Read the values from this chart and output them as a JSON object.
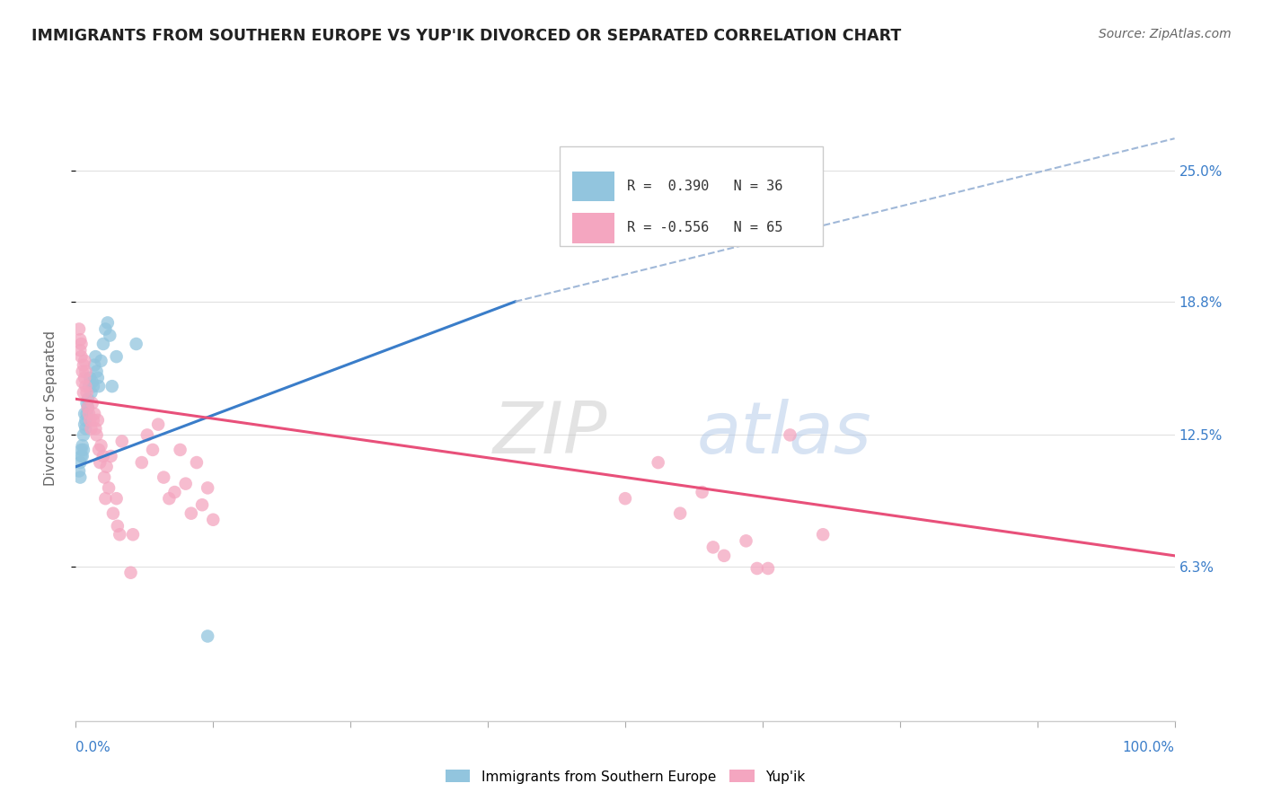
{
  "title": "IMMIGRANTS FROM SOUTHERN EUROPE VS YUP'IK DIVORCED OR SEPARATED CORRELATION CHART",
  "source": "Source: ZipAtlas.com",
  "ylabel": "Divorced or Separated",
  "ytick_labels": [
    "6.3%",
    "12.5%",
    "18.8%",
    "25.0%"
  ],
  "ytick_values": [
    0.063,
    0.125,
    0.188,
    0.25
  ],
  "xlim": [
    0.0,
    1.0
  ],
  "ylim": [
    -0.01,
    0.285
  ],
  "watermark_zip": "ZIP",
  "watermark_atlas": "atlas",
  "legend_blue_r": "R =  0.390",
  "legend_blue_n": "N = 36",
  "legend_pink_r": "R = -0.556",
  "legend_pink_n": "N = 65",
  "legend_label_blue": "Immigrants from Southern Europe",
  "legend_label_pink": "Yup'ik",
  "blue_color": "#92c5de",
  "pink_color": "#f4a6c0",
  "blue_line_color": "#3a7dc9",
  "pink_line_color": "#e8507a",
  "dashed_line_color": "#a0b8d8",
  "blue_scatter": [
    [
      0.003,
      0.108
    ],
    [
      0.004,
      0.112
    ],
    [
      0.004,
      0.105
    ],
    [
      0.005,
      0.118
    ],
    [
      0.005,
      0.115
    ],
    [
      0.006,
      0.12
    ],
    [
      0.006,
      0.115
    ],
    [
      0.007,
      0.125
    ],
    [
      0.007,
      0.118
    ],
    [
      0.008,
      0.13
    ],
    [
      0.008,
      0.135
    ],
    [
      0.009,
      0.128
    ],
    [
      0.009,
      0.132
    ],
    [
      0.01,
      0.14
    ],
    [
      0.01,
      0.135
    ],
    [
      0.011,
      0.142
    ],
    [
      0.011,
      0.138
    ],
    [
      0.012,
      0.148
    ],
    [
      0.013,
      0.152
    ],
    [
      0.014,
      0.145
    ],
    [
      0.015,
      0.15
    ],
    [
      0.016,
      0.148
    ],
    [
      0.017,
      0.158
    ],
    [
      0.018,
      0.162
    ],
    [
      0.019,
      0.155
    ],
    [
      0.02,
      0.152
    ],
    [
      0.021,
      0.148
    ],
    [
      0.023,
      0.16
    ],
    [
      0.025,
      0.168
    ],
    [
      0.027,
      0.175
    ],
    [
      0.029,
      0.178
    ],
    [
      0.031,
      0.172
    ],
    [
      0.033,
      0.148
    ],
    [
      0.037,
      0.162
    ],
    [
      0.055,
      0.168
    ],
    [
      0.12,
      0.03
    ]
  ],
  "pink_scatter": [
    [
      0.003,
      0.175
    ],
    [
      0.004,
      0.17
    ],
    [
      0.004,
      0.165
    ],
    [
      0.005,
      0.162
    ],
    [
      0.005,
      0.168
    ],
    [
      0.006,
      0.155
    ],
    [
      0.006,
      0.15
    ],
    [
      0.007,
      0.158
    ],
    [
      0.007,
      0.145
    ],
    [
      0.008,
      0.152
    ],
    [
      0.008,
      0.16
    ],
    [
      0.009,
      0.155
    ],
    [
      0.009,
      0.148
    ],
    [
      0.01,
      0.145
    ],
    [
      0.011,
      0.138
    ],
    [
      0.012,
      0.135
    ],
    [
      0.013,
      0.132
    ],
    [
      0.014,
      0.128
    ],
    [
      0.015,
      0.14
    ],
    [
      0.016,
      0.132
    ],
    [
      0.017,
      0.135
    ],
    [
      0.018,
      0.128
    ],
    [
      0.019,
      0.125
    ],
    [
      0.02,
      0.132
    ],
    [
      0.021,
      0.118
    ],
    [
      0.022,
      0.112
    ],
    [
      0.023,
      0.12
    ],
    [
      0.025,
      0.115
    ],
    [
      0.026,
      0.105
    ],
    [
      0.027,
      0.095
    ],
    [
      0.028,
      0.11
    ],
    [
      0.03,
      0.1
    ],
    [
      0.032,
      0.115
    ],
    [
      0.034,
      0.088
    ],
    [
      0.037,
      0.095
    ],
    [
      0.038,
      0.082
    ],
    [
      0.04,
      0.078
    ],
    [
      0.042,
      0.122
    ],
    [
      0.05,
      0.06
    ],
    [
      0.052,
      0.078
    ],
    [
      0.06,
      0.112
    ],
    [
      0.065,
      0.125
    ],
    [
      0.07,
      0.118
    ],
    [
      0.075,
      0.13
    ],
    [
      0.08,
      0.105
    ],
    [
      0.085,
      0.095
    ],
    [
      0.09,
      0.098
    ],
    [
      0.095,
      0.118
    ],
    [
      0.1,
      0.102
    ],
    [
      0.105,
      0.088
    ],
    [
      0.11,
      0.112
    ],
    [
      0.115,
      0.092
    ],
    [
      0.12,
      0.1
    ],
    [
      0.125,
      0.085
    ],
    [
      0.5,
      0.095
    ],
    [
      0.53,
      0.112
    ],
    [
      0.55,
      0.088
    ],
    [
      0.57,
      0.098
    ],
    [
      0.58,
      0.072
    ],
    [
      0.59,
      0.068
    ],
    [
      0.61,
      0.075
    ],
    [
      0.62,
      0.062
    ],
    [
      0.63,
      0.062
    ],
    [
      0.65,
      0.125
    ],
    [
      0.68,
      0.078
    ]
  ],
  "blue_line_x": [
    0.0,
    0.4
  ],
  "blue_line_y": [
    0.11,
    0.188
  ],
  "dashed_line_x": [
    0.4,
    1.0
  ],
  "dashed_line_y": [
    0.188,
    0.265
  ],
  "pink_line_x": [
    0.0,
    1.0
  ],
  "pink_line_y": [
    0.142,
    0.068
  ],
  "background_color": "#ffffff",
  "grid_color": "#e0e0e0"
}
